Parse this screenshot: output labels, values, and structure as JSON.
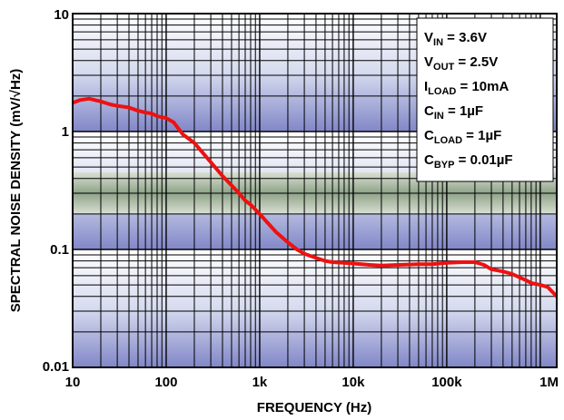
{
  "chart_data": {
    "type": "line",
    "title": "",
    "xlabel": "FREQUENCY (Hz)",
    "ylabel": "SPECTRAL NOISE DENSITY (mV/√Hz)",
    "xscale": "log",
    "yscale": "log",
    "xlim": [
      10,
      1500000
    ],
    "ylim": [
      0.01,
      10
    ],
    "x_ticks": [
      {
        "value": 10,
        "label": "10"
      },
      {
        "value": 100,
        "label": "100"
      },
      {
        "value": 1000,
        "label": "1k"
      },
      {
        "value": 10000,
        "label": "10k"
      },
      {
        "value": 100000,
        "label": "100k"
      },
      {
        "value": 1000000,
        "label": "1M"
      }
    ],
    "y_ticks": [
      {
        "value": 0.01,
        "label": "0.01"
      },
      {
        "value": 0.1,
        "label": "0.1"
      },
      {
        "value": 1,
        "label": "1"
      },
      {
        "value": 10,
        "label": "10"
      }
    ],
    "grid": true,
    "line_color": "#ee1111",
    "series": [
      {
        "name": "",
        "x": [
          10,
          12,
          15,
          20,
          25,
          30,
          40,
          50,
          60,
          70,
          80,
          100,
          120,
          150,
          200,
          250,
          300,
          400,
          500,
          600,
          700,
          800,
          1000,
          1200,
          1500,
          2000,
          2500,
          3000,
          4000,
          5000,
          6000,
          8000,
          10000,
          15000,
          20000,
          30000,
          50000,
          70000,
          100000,
          150000,
          200000,
          250000,
          300000,
          400000,
          500000,
          600000,
          700000,
          800000,
          1000000,
          1200000,
          1500000
        ],
        "y": [
          1.75,
          1.85,
          1.9,
          1.8,
          1.7,
          1.65,
          1.6,
          1.5,
          1.45,
          1.42,
          1.35,
          1.3,
          1.2,
          0.95,
          0.8,
          0.65,
          0.55,
          0.42,
          0.35,
          0.3,
          0.26,
          0.24,
          0.2,
          0.17,
          0.14,
          0.115,
          0.1,
          0.092,
          0.085,
          0.08,
          0.078,
          0.077,
          0.076,
          0.074,
          0.073,
          0.074,
          0.075,
          0.075,
          0.077,
          0.078,
          0.078,
          0.074,
          0.068,
          0.065,
          0.062,
          0.058,
          0.055,
          0.052,
          0.05,
          0.048,
          0.04
        ]
      }
    ]
  },
  "annotations": [
    {
      "base": "V",
      "sub": "IN",
      "rest": " = 3.6V"
    },
    {
      "base": "V",
      "sub": "OUT",
      "rest": " = 2.5V"
    },
    {
      "base": "I",
      "sub": "LOAD",
      "rest": " = 10mA"
    },
    {
      "base": "C",
      "sub": "IN",
      "rest": " = 1µF"
    },
    {
      "base": "C",
      "sub": "LOAD",
      "rest": " = 1µF"
    },
    {
      "base": "C",
      "sub": "BYP",
      "rest": " = 0.01µF"
    }
  ]
}
